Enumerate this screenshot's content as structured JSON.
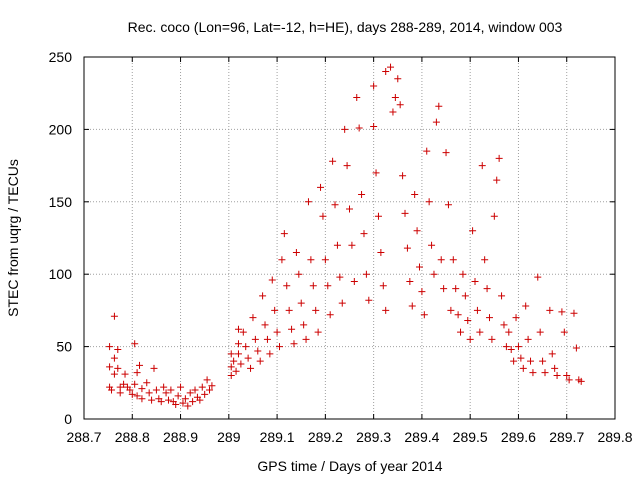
{
  "chart_data": {
    "type": "scatter",
    "title": "Rec. coco (Lon=96, Lat=-12, h=HE), days 288-289, 2014, window 003",
    "xlabel": "GPS time / Days of year 2014",
    "ylabel": "STEC from uqrg / TECUs",
    "xlim": [
      288.7,
      289.8
    ],
    "ylim": [
      0,
      250
    ],
    "x_ticks": [
      288.7,
      288.8,
      288.9,
      289,
      289.1,
      289.2,
      289.3,
      289.4,
      289.5,
      289.6,
      289.7,
      289.8
    ],
    "x_tick_labels": [
      "288.7",
      "288.8",
      "288.9",
      "289",
      "289.1",
      "289.2",
      "289.3",
      "289.4",
      "289.5",
      "289.6",
      "289.7",
      "289.8"
    ],
    "y_ticks": [
      0,
      50,
      100,
      150,
      200,
      250
    ],
    "y_tick_labels": [
      "0",
      "50",
      "100",
      "150",
      "200",
      "250"
    ],
    "grid": true,
    "marker": "+",
    "color": "#cc0000",
    "series": [
      {
        "points": [
          [
            288.753,
            50
          ],
          [
            288.753,
            36
          ],
          [
            288.753,
            22
          ],
          [
            288.757,
            20
          ],
          [
            288.763,
            71
          ],
          [
            288.763,
            42
          ],
          [
            288.763,
            31
          ],
          [
            288.77,
            48
          ],
          [
            288.77,
            35
          ],
          [
            288.775,
            22
          ],
          [
            288.775,
            18
          ],
          [
            288.782,
            24
          ],
          [
            288.785,
            31
          ],
          [
            288.79,
            22
          ],
          [
            288.795,
            20
          ],
          [
            288.8,
            17
          ],
          [
            288.805,
            52
          ],
          [
            288.805,
            24
          ],
          [
            288.81,
            32
          ],
          [
            288.81,
            16
          ],
          [
            288.815,
            37
          ],
          [
            288.82,
            21
          ],
          [
            288.82,
            14
          ],
          [
            288.83,
            25
          ],
          [
            288.835,
            18
          ],
          [
            288.84,
            13
          ],
          [
            288.845,
            35
          ],
          [
            288.85,
            20
          ],
          [
            288.855,
            14
          ],
          [
            288.86,
            12
          ],
          [
            288.865,
            22
          ],
          [
            288.87,
            18
          ],
          [
            288.875,
            13
          ],
          [
            288.88,
            20
          ],
          [
            288.885,
            12
          ],
          [
            288.89,
            10
          ],
          [
            288.895,
            16
          ],
          [
            288.9,
            22
          ],
          [
            288.905,
            11
          ],
          [
            288.91,
            14
          ],
          [
            288.915,
            9
          ],
          [
            288.92,
            18
          ],
          [
            288.925,
            12
          ],
          [
            288.93,
            20
          ],
          [
            288.935,
            15
          ],
          [
            288.94,
            13
          ],
          [
            288.945,
            22
          ],
          [
            288.95,
            17
          ],
          [
            288.955,
            27
          ],
          [
            288.96,
            20
          ],
          [
            288.965,
            23
          ],
          [
            289.005,
            45
          ],
          [
            289.005,
            36
          ],
          [
            289.005,
            30
          ],
          [
            289.01,
            40
          ],
          [
            289.015,
            33
          ],
          [
            289.02,
            62
          ],
          [
            289.02,
            52
          ],
          [
            289.02,
            45
          ],
          [
            289.025,
            38
          ],
          [
            289.03,
            60
          ],
          [
            289.035,
            50
          ],
          [
            289.04,
            42
          ],
          [
            289.045,
            35
          ],
          [
            289.05,
            70
          ],
          [
            289.055,
            55
          ],
          [
            289.06,
            47
          ],
          [
            289.065,
            40
          ],
          [
            289.07,
            85
          ],
          [
            289.075,
            65
          ],
          [
            289.08,
            55
          ],
          [
            289.085,
            45
          ],
          [
            289.09,
            96
          ],
          [
            289.095,
            75
          ],
          [
            289.1,
            60
          ],
          [
            289.105,
            50
          ],
          [
            289.11,
            110
          ],
          [
            289.115,
            128
          ],
          [
            289.12,
            92
          ],
          [
            289.125,
            75
          ],
          [
            289.13,
            62
          ],
          [
            289.135,
            52
          ],
          [
            289.14,
            115
          ],
          [
            289.145,
            100
          ],
          [
            289.15,
            80
          ],
          [
            289.155,
            65
          ],
          [
            289.16,
            55
          ],
          [
            289.165,
            150
          ],
          [
            289.17,
            110
          ],
          [
            289.175,
            92
          ],
          [
            289.18,
            75
          ],
          [
            289.185,
            60
          ],
          [
            289.19,
            160
          ],
          [
            289.195,
            140
          ],
          [
            289.2,
            110
          ],
          [
            289.205,
            92
          ],
          [
            289.21,
            72
          ],
          [
            289.215,
            178
          ],
          [
            289.22,
            148
          ],
          [
            289.225,
            120
          ],
          [
            289.23,
            98
          ],
          [
            289.235,
            80
          ],
          [
            289.24,
            200
          ],
          [
            289.245,
            175
          ],
          [
            289.25,
            145
          ],
          [
            289.255,
            120
          ],
          [
            289.26,
            95
          ],
          [
            289.265,
            222
          ],
          [
            289.27,
            201
          ],
          [
            289.275,
            155
          ],
          [
            289.28,
            128
          ],
          [
            289.285,
            100
          ],
          [
            289.29,
            82
          ],
          [
            289.3,
            202
          ],
          [
            289.305,
            170
          ],
          [
            289.31,
            140
          ],
          [
            289.315,
            115
          ],
          [
            289.32,
            92
          ],
          [
            289.325,
            75
          ],
          [
            289.3,
            230
          ],
          [
            289.325,
            240
          ],
          [
            289.335,
            243
          ],
          [
            289.34,
            212
          ],
          [
            289.345,
            222
          ],
          [
            289.35,
            235
          ],
          [
            289.355,
            217
          ],
          [
            289.36,
            168
          ],
          [
            289.365,
            142
          ],
          [
            289.37,
            118
          ],
          [
            289.375,
            95
          ],
          [
            289.38,
            78
          ],
          [
            289.385,
            155
          ],
          [
            289.39,
            130
          ],
          [
            289.395,
            105
          ],
          [
            289.4,
            88
          ],
          [
            289.405,
            72
          ],
          [
            289.41,
            185
          ],
          [
            289.415,
            150
          ],
          [
            289.42,
            120
          ],
          [
            289.425,
            100
          ],
          [
            289.43,
            205
          ],
          [
            289.435,
            216
          ],
          [
            289.44,
            110
          ],
          [
            289.445,
            90
          ],
          [
            289.45,
            184
          ],
          [
            289.455,
            148
          ],
          [
            289.46,
            75
          ],
          [
            289.465,
            110
          ],
          [
            289.47,
            90
          ],
          [
            289.475,
            72
          ],
          [
            289.48,
            60
          ],
          [
            289.485,
            100
          ],
          [
            289.49,
            85
          ],
          [
            289.495,
            68
          ],
          [
            289.5,
            55
          ],
          [
            289.505,
            130
          ],
          [
            289.51,
            95
          ],
          [
            289.515,
            75
          ],
          [
            289.52,
            60
          ],
          [
            289.525,
            175
          ],
          [
            289.53,
            110
          ],
          [
            289.535,
            90
          ],
          [
            289.54,
            70
          ],
          [
            289.545,
            55
          ],
          [
            289.55,
            140
          ],
          [
            289.555,
            165
          ],
          [
            289.56,
            180
          ],
          [
            289.565,
            85
          ],
          [
            289.57,
            65
          ],
          [
            289.575,
            50
          ],
          [
            289.58,
            60
          ],
          [
            289.585,
            48
          ],
          [
            289.59,
            40
          ],
          [
            289.595,
            70
          ],
          [
            289.6,
            50
          ],
          [
            289.605,
            42
          ],
          [
            289.61,
            35
          ],
          [
            289.615,
            78
          ],
          [
            289.62,
            55
          ],
          [
            289.625,
            40
          ],
          [
            289.63,
            32
          ],
          [
            289.64,
            98
          ],
          [
            289.645,
            60
          ],
          [
            289.65,
            40
          ],
          [
            289.655,
            32
          ],
          [
            289.665,
            75
          ],
          [
            289.67,
            45
          ],
          [
            289.675,
            35
          ],
          [
            289.68,
            30
          ],
          [
            289.69,
            74
          ],
          [
            289.695,
            60
          ],
          [
            289.7,
            30
          ],
          [
            289.705,
            27
          ],
          [
            289.715,
            73
          ],
          [
            289.72,
            49
          ],
          [
            289.725,
            27
          ],
          [
            289.73,
            26
          ]
        ]
      }
    ]
  }
}
